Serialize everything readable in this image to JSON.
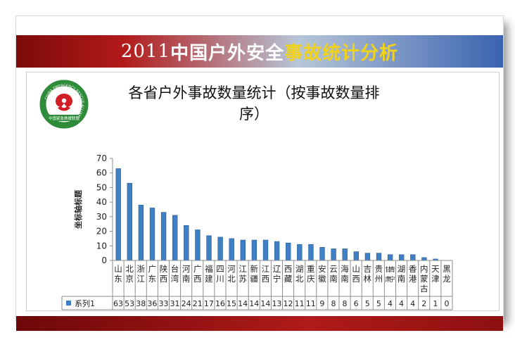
{
  "slide": {
    "title_year": "2011",
    "title_mid": "中国户外安全",
    "title_accent": "事故统计分析"
  },
  "logo": {
    "ring_text": "CHINA EMERGENCY RESCUE ALLIANCE",
    "bottom_text": "中国紧急救援联盟",
    "colors": {
      "ring": "#2e8b3a",
      "emblem": "#d21f26"
    }
  },
  "chart_data": {
    "type": "bar",
    "title": "各省户外事故数量统计（按事故数量排序）",
    "ylabel": "坐标轴标题",
    "ylim": [
      0,
      70
    ],
    "yticks": [
      "0",
      "10",
      "20",
      "30",
      "40",
      "50",
      "60",
      "70"
    ],
    "legend_position": "bottom-left (data table)",
    "gridlines": false,
    "bar_color": "#3f7fc3",
    "categories": [
      "山东",
      "北京",
      "浙江",
      "广东",
      "陕西",
      "台湾",
      "河南",
      "广西",
      "福建",
      "四川",
      "河北",
      "江苏",
      "新疆",
      "江西",
      "辽宁",
      "西藏",
      "湖北",
      "重庆",
      "安徽",
      "云南",
      "海南",
      "山西",
      "吉林",
      "贵州",
      "甘肃青宁",
      "湖南",
      "香港",
      "内蒙古",
      "天津",
      "黑龙"
    ],
    "series": [
      {
        "name": "系列1",
        "values": [
          63,
          53,
          38,
          36,
          33,
          31,
          24,
          21,
          17,
          16,
          15,
          14,
          14,
          14,
          13,
          12,
          11,
          11,
          9,
          8,
          8,
          6,
          5,
          5,
          4,
          4,
          4,
          2,
          1,
          0
        ]
      }
    ]
  }
}
